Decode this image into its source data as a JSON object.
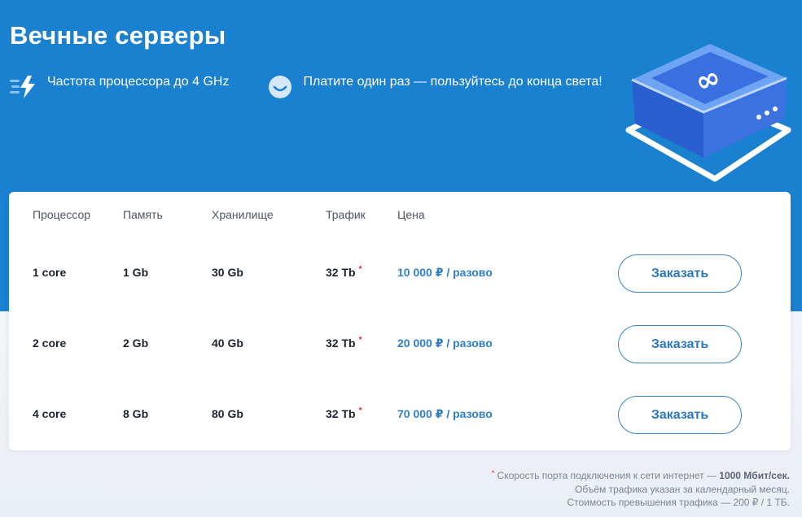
{
  "page": {
    "title": "Вечные серверы"
  },
  "features": [
    {
      "icon": "lightning-speed-icon",
      "text": "Частота процессора до 4 GHz"
    },
    {
      "icon": "smile-icon",
      "text": "Платите один раз — пользуйтесь до конца света!"
    }
  ],
  "illustration": {
    "icon": "server-infinity-icon",
    "symbol": "∞"
  },
  "table": {
    "headers": {
      "cpu": "Процессор",
      "memory": "Память",
      "storage": "Хранилище",
      "traffic": "Трафик",
      "price": "Цена"
    },
    "rows": [
      {
        "cpu": "1 core",
        "memory": "1 Gb",
        "storage": "30 Gb",
        "traffic": "32 Tb",
        "mark": "*",
        "price": "10 000 ₽ / разово",
        "button": "Заказать"
      },
      {
        "cpu": "2 core",
        "memory": "2 Gb",
        "storage": "40 Gb",
        "traffic": "32 Tb",
        "mark": "*",
        "price": "20 000 ₽ / разово",
        "button": "Заказать"
      },
      {
        "cpu": "4 core",
        "memory": "8 Gb",
        "storage": "80 Gb",
        "traffic": "32 Tb",
        "mark": "*",
        "price": "70 000 ₽ / разово",
        "button": "Заказать"
      }
    ]
  },
  "footnotes": {
    "mark": "*",
    "line1_prefix": "Скорость порта подключения к сети интернет — ",
    "line1_bold": "1000 Мбит/сек.",
    "line2": "Объём трафика указан за календарный месяц.",
    "line3": "Стоимость превышения трафика — 200 ₽ / 1 ТБ."
  },
  "colors": {
    "hero": "#1a80d0",
    "accent": "#2f7fc8",
    "asterisk": "#e0202a"
  }
}
